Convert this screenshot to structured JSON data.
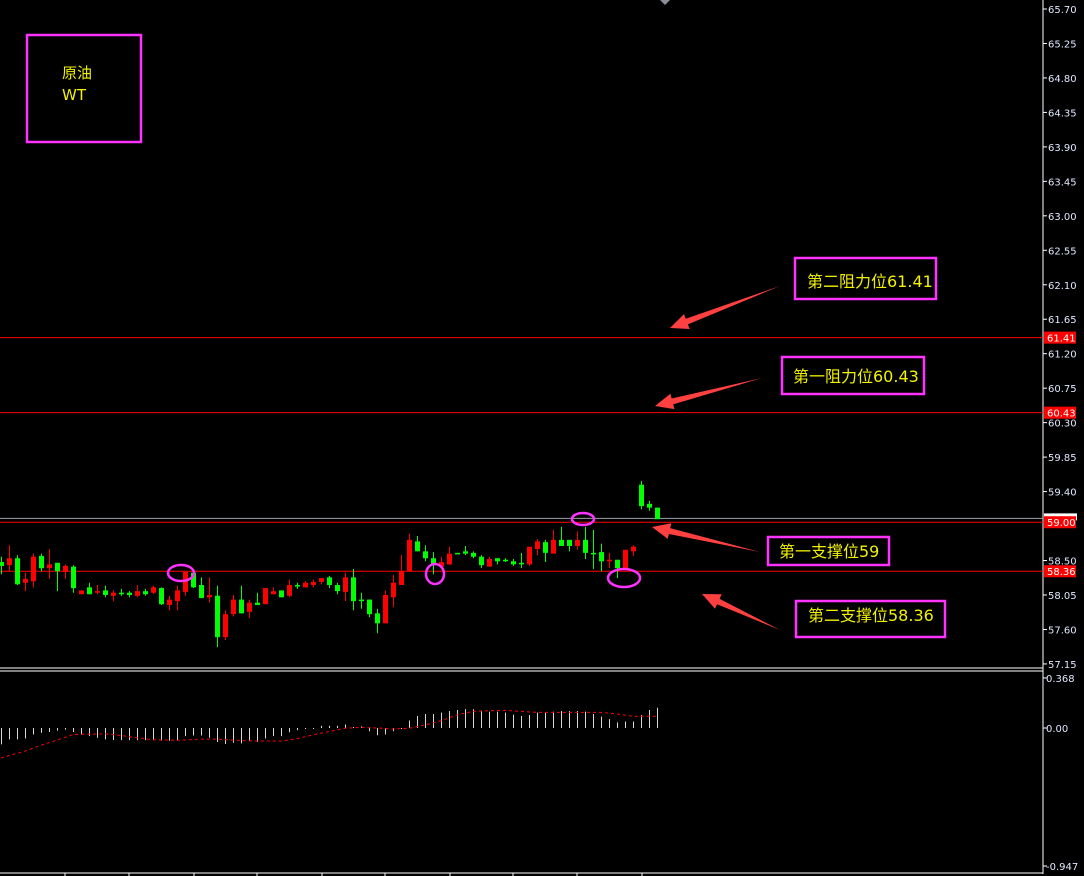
{
  "chart_data": {
    "type": "candlestick",
    "title_box": {
      "line1": "原油",
      "line2": "WT"
    },
    "price_axis": {
      "range": [
        57.15,
        65.7
      ],
      "ticks": [
        "65.70",
        "65.25",
        "64.80",
        "64.35",
        "63.90",
        "63.45",
        "63.00",
        "62.55",
        "62.10",
        "61.65",
        "61.20",
        "60.75",
        "60.30",
        "59.85",
        "59.40",
        "58.50",
        "58.05",
        "57.60",
        "57.15"
      ]
    },
    "levels": [
      {
        "price": 61.41,
        "label": "61.41",
        "note": "第二阻力位61.41",
        "color": "#ff0000"
      },
      {
        "price": 60.43,
        "label": "60.43",
        "note": "第一阻力位60.43",
        "color": "#ff0000"
      },
      {
        "price": 59.0,
        "label": "59.00",
        "note": "第一支撑位59",
        "color": "#ff0000"
      },
      {
        "price": 58.36,
        "label": "58.36",
        "note": "第二支撑位58.36",
        "color": "#ff0000"
      }
    ],
    "current_price_line": {
      "price": 59.05,
      "color": "#9aa0a8"
    },
    "colors": {
      "up": "#ff0000",
      "down": "#00ff00",
      "annotation": "#ff33ff",
      "note_text": "#f2f200",
      "arrow": "#ff4040"
    },
    "candles_ohlc": [
      [
        58.48,
        58.55,
        58.32,
        58.43
      ],
      [
        58.44,
        58.7,
        58.36,
        58.53
      ],
      [
        58.53,
        58.57,
        58.18,
        58.19
      ],
      [
        58.21,
        58.34,
        58.1,
        58.26
      ],
      [
        58.23,
        58.59,
        58.15,
        58.55
      ],
      [
        58.56,
        58.59,
        58.36,
        58.4
      ],
      [
        58.4,
        58.65,
        58.26,
        58.45
      ],
      [
        58.47,
        58.47,
        58.1,
        58.36
      ],
      [
        58.35,
        58.45,
        58.26,
        58.43
      ],
      [
        58.42,
        58.44,
        58.08,
        58.14
      ],
      [
        58.06,
        58.11,
        58.06,
        58.11
      ],
      [
        58.15,
        58.21,
        58.06,
        58.06
      ],
      [
        58.08,
        58.18,
        58.06,
        58.1
      ],
      [
        58.11,
        58.17,
        58.02,
        58.05
      ],
      [
        58.04,
        58.11,
        57.97,
        58.08
      ],
      [
        58.08,
        58.13,
        58.04,
        58.06
      ],
      [
        58.08,
        58.1,
        58.02,
        58.05
      ],
      [
        58.04,
        58.18,
        58.02,
        58.1
      ],
      [
        58.1,
        58.13,
        58.04,
        58.06
      ],
      [
        58.08,
        58.17,
        58.06,
        58.15
      ],
      [
        58.14,
        58.15,
        57.92,
        57.93
      ],
      [
        57.92,
        58.04,
        57.85,
        57.99
      ],
      [
        57.97,
        58.17,
        57.85,
        58.11
      ],
      [
        58.09,
        58.36,
        58.04,
        58.35
      ],
      [
        58.34,
        58.35,
        58.14,
        58.15
      ],
      [
        58.18,
        58.28,
        58.01,
        58.01
      ],
      [
        58.02,
        58.28,
        57.95,
        58.05
      ],
      [
        58.04,
        58.17,
        57.37,
        57.5
      ],
      [
        57.5,
        57.85,
        57.46,
        57.8
      ],
      [
        57.8,
        58.05,
        57.77,
        57.99
      ],
      [
        57.99,
        58.17,
        57.81,
        57.81
      ],
      [
        57.83,
        57.99,
        57.75,
        57.95
      ],
      [
        57.95,
        58.08,
        57.92,
        57.92
      ],
      [
        57.93,
        58.14,
        57.93,
        58.14
      ],
      [
        58.06,
        58.15,
        58.06,
        58.1
      ],
      [
        58.11,
        58.11,
        58.02,
        58.02
      ],
      [
        58.04,
        58.25,
        58.02,
        58.18
      ],
      [
        58.18,
        58.21,
        58.13,
        58.17
      ],
      [
        58.15,
        58.23,
        58.15,
        58.21
      ],
      [
        58.18,
        58.25,
        58.15,
        58.22
      ],
      [
        58.22,
        58.27,
        58.19,
        58.27
      ],
      [
        58.28,
        58.3,
        58.14,
        58.18
      ],
      [
        58.18,
        58.21,
        58.06,
        58.1
      ],
      [
        58.09,
        58.34,
        57.97,
        58.28
      ],
      [
        58.28,
        58.39,
        57.85,
        57.97
      ],
      [
        57.99,
        58.08,
        57.87,
        57.97
      ],
      [
        57.99,
        57.99,
        57.76,
        57.8
      ],
      [
        57.81,
        57.87,
        57.55,
        57.68
      ],
      [
        57.68,
        58.11,
        57.68,
        58.05
      ],
      [
        58.02,
        58.31,
        57.89,
        58.21
      ],
      [
        58.18,
        58.57,
        58.18,
        58.36
      ],
      [
        58.36,
        58.85,
        58.35,
        58.77
      ],
      [
        58.75,
        58.82,
        58.62,
        58.62
      ],
      [
        58.62,
        58.7,
        58.49,
        58.53
      ],
      [
        58.53,
        58.61,
        58.32,
        58.44
      ],
      [
        58.42,
        58.55,
        58.42,
        58.48
      ],
      [
        58.45,
        58.68,
        58.44,
        58.59
      ],
      [
        58.6,
        58.6,
        58.59,
        58.59
      ],
      [
        58.62,
        58.69,
        58.57,
        58.59
      ],
      [
        58.6,
        58.62,
        58.53,
        58.55
      ],
      [
        58.55,
        58.57,
        58.4,
        58.44
      ],
      [
        58.42,
        58.55,
        58.42,
        58.52
      ],
      [
        58.53,
        58.53,
        58.45,
        58.49
      ],
      [
        58.51,
        58.53,
        58.48,
        58.49
      ],
      [
        58.49,
        58.52,
        58.43,
        58.45
      ],
      [
        58.47,
        58.6,
        58.4,
        58.45
      ],
      [
        58.45,
        58.68,
        58.43,
        58.68
      ],
      [
        58.65,
        58.78,
        58.57,
        58.75
      ],
      [
        58.74,
        58.77,
        58.48,
        58.6
      ],
      [
        58.59,
        58.9,
        58.59,
        58.77
      ],
      [
        58.77,
        58.94,
        58.69,
        58.69
      ],
      [
        58.77,
        58.77,
        58.62,
        58.69
      ],
      [
        58.69,
        58.88,
        58.64,
        58.77
      ],
      [
        58.77,
        58.94,
        58.52,
        58.6
      ],
      [
        58.6,
        58.9,
        58.39,
        58.59
      ],
      [
        58.61,
        58.72,
        58.36,
        58.49
      ],
      [
        58.49,
        58.6,
        58.4,
        58.51
      ],
      [
        58.51,
        58.51,
        58.27,
        58.4
      ],
      [
        58.4,
        58.64,
        58.4,
        58.64
      ],
      [
        58.62,
        58.7,
        58.56,
        58.68
      ],
      [
        59.49,
        59.54,
        59.17,
        59.21
      ],
      [
        59.24,
        59.28,
        59.15,
        59.19
      ],
      [
        59.19,
        59.19,
        59.04,
        59.04
      ]
    ],
    "highlighted_candles": [
      23,
      54,
      73,
      77
    ],
    "indicator": {
      "axis_ticks": [
        "0.368",
        "0.00",
        "-0.947"
      ],
      "range": [
        -0.947,
        0.368
      ],
      "histogram_color": "#d8d8d8",
      "signal_color": "#ff0000",
      "histogram": [
        -0.12,
        -0.084,
        -0.084,
        -0.077,
        -0.048,
        -0.036,
        -0.029,
        -0.019,
        -0.012,
        -0.029,
        -0.048,
        -0.06,
        -0.072,
        -0.084,
        -0.089,
        -0.089,
        -0.089,
        -0.089,
        -0.089,
        -0.089,
        -0.094,
        -0.094,
        -0.089,
        -0.06,
        -0.055,
        -0.055,
        -0.072,
        -0.103,
        -0.118,
        -0.108,
        -0.113,
        -0.096,
        -0.103,
        -0.077,
        -0.06,
        -0.06,
        -0.031,
        -0.017,
        -0.007,
        -0.007,
        0.017,
        0.017,
        0.017,
        0.026,
        0.007,
        0.012,
        -0.024,
        -0.053,
        -0.048,
        -0.024,
        -0.007,
        0.055,
        0.089,
        0.103,
        0.103,
        0.113,
        0.125,
        0.132,
        0.139,
        0.139,
        0.125,
        0.12,
        0.12,
        0.113,
        0.098,
        0.089,
        0.096,
        0.113,
        0.113,
        0.12,
        0.125,
        0.125,
        0.125,
        0.12,
        0.103,
        0.084,
        0.065,
        0.041,
        0.048,
        0.048,
        0.096,
        0.132,
        0.149
      ],
      "signal_points": [
        [
          0,
          -0.22
        ],
        [
          3,
          -0.17
        ],
        [
          5,
          -0.127
        ],
        [
          7,
          -0.089
        ],
        [
          9,
          -0.048
        ],
        [
          13,
          -0.043
        ],
        [
          15,
          -0.055
        ],
        [
          17,
          -0.072
        ],
        [
          19,
          -0.086
        ],
        [
          22,
          -0.091
        ],
        [
          25,
          -0.082
        ],
        [
          27,
          -0.082
        ],
        [
          29,
          -0.089
        ],
        [
          32,
          -0.096
        ],
        [
          35,
          -0.096
        ],
        [
          37,
          -0.079
        ],
        [
          39,
          -0.05
        ],
        [
          41,
          -0.026
        ],
        [
          43,
          -0.002
        ],
        [
          45,
          0.005
        ],
        [
          47,
          0.0
        ],
        [
          49,
          -0.007
        ],
        [
          51,
          -0.002
        ],
        [
          53,
          0.022
        ],
        [
          55,
          0.053
        ],
        [
          57,
          0.096
        ],
        [
          59,
          0.122
        ],
        [
          61,
          0.127
        ],
        [
          63,
          0.13
        ],
        [
          65,
          0.122
        ],
        [
          67,
          0.115
        ],
        [
          75,
          0.115
        ],
        [
          77,
          0.103
        ],
        [
          79,
          0.086
        ],
        [
          82,
          0.086
        ]
      ]
    }
  }
}
